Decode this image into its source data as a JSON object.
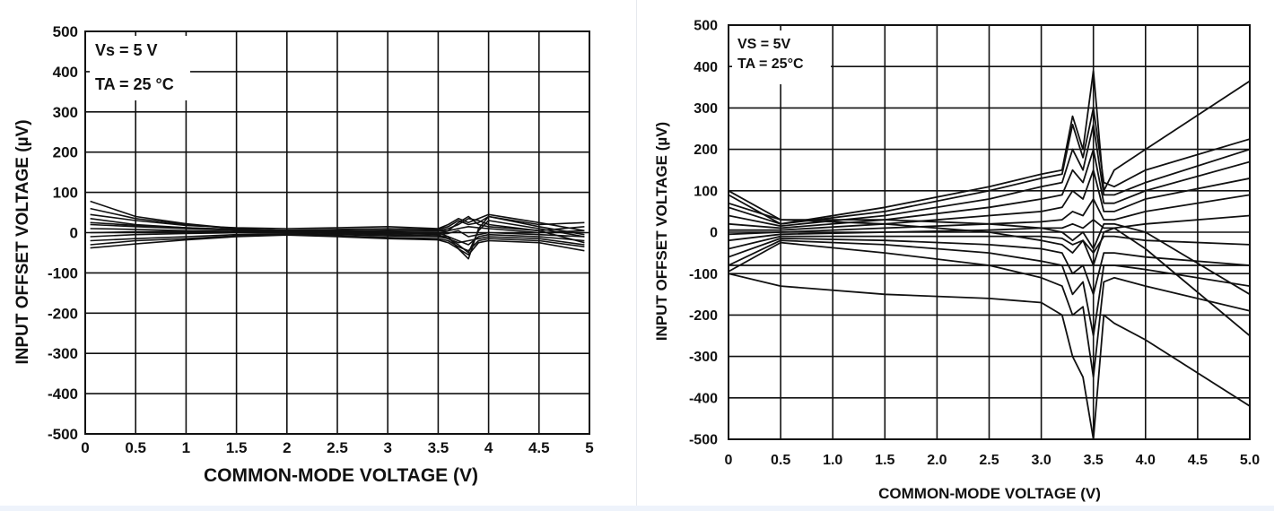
{
  "chart_data": [
    {
      "type": "line",
      "title": "",
      "xlabel": "COMMON-MODE VOLTAGE (V)",
      "ylabel": "INPUT OFFSET VOLTAGE (µV)",
      "xlim": [
        0,
        5
      ],
      "ylim": [
        -500,
        500
      ],
      "x_ticks": [
        "0",
        "0.5",
        "1",
        "1.5",
        "2",
        "2.5",
        "3",
        "3.5",
        "4",
        "4.5",
        "5"
      ],
      "y_ticks": [
        "500",
        "400",
        "300",
        "200",
        "100",
        "0",
        "-100",
        "-200",
        "-300",
        "-400",
        "-500"
      ],
      "grid": true,
      "legend": "none",
      "annotations": [
        "Vs = 5 V",
        "TA = 25 °C"
      ],
      "series": [
        {
          "x": [
            0.05,
            0.5,
            1.0,
            1.5,
            2.0,
            2.5,
            3.0,
            3.5,
            3.6,
            3.7,
            3.8,
            3.9,
            4.0,
            4.5,
            4.95
          ],
          "values": [
            78,
            40,
            22,
            10,
            5,
            3,
            2,
            0,
            -10,
            -40,
            -65,
            10,
            40,
            15,
            -5
          ]
        },
        {
          "x": [
            0.05,
            0.5,
            1.0,
            1.5,
            2.0,
            2.5,
            3.0,
            3.5,
            3.6,
            3.7,
            3.8,
            3.9,
            4.0,
            4.5,
            4.95
          ],
          "values": [
            60,
            35,
            20,
            10,
            5,
            3,
            0,
            -5,
            -15,
            -30,
            -50,
            5,
            30,
            10,
            -10
          ]
        },
        {
          "x": [
            0.05,
            0.5,
            1.0,
            1.5,
            2.0,
            2.5,
            3.0,
            3.5,
            3.6,
            3.7,
            3.8,
            3.9,
            4.0,
            4.5,
            4.95
          ],
          "values": [
            35,
            20,
            12,
            8,
            6,
            8,
            10,
            8,
            15,
            30,
            20,
            25,
            40,
            20,
            25
          ]
        },
        {
          "x": [
            0.05,
            0.5,
            1.0,
            1.5,
            2.0,
            2.5,
            3.0,
            3.5,
            3.6,
            3.7,
            3.8,
            3.9,
            4.0,
            4.5,
            4.95
          ],
          "values": [
            20,
            15,
            10,
            6,
            4,
            5,
            6,
            5,
            10,
            20,
            35,
            30,
            20,
            5,
            15
          ]
        },
        {
          "x": [
            0.05,
            0.5,
            1.0,
            1.5,
            2.0,
            2.5,
            3.0,
            3.5,
            3.6,
            3.7,
            3.8,
            3.9,
            4.0,
            4.5,
            4.95
          ],
          "values": [
            10,
            8,
            5,
            3,
            2,
            3,
            5,
            4,
            5,
            10,
            15,
            12,
            10,
            0,
            5
          ]
        },
        {
          "x": [
            0.05,
            0.5,
            1.0,
            1.5,
            2.0,
            2.5,
            3.0,
            3.5,
            3.6,
            3.7,
            3.8,
            3.9,
            4.0,
            4.5,
            4.95
          ],
          "values": [
            0,
            2,
            3,
            2,
            1,
            0,
            -2,
            -4,
            -2,
            5,
            -10,
            -5,
            0,
            -5,
            -10
          ]
        },
        {
          "x": [
            0.05,
            0.5,
            1.0,
            1.5,
            2.0,
            2.5,
            3.0,
            3.5,
            3.6,
            3.7,
            3.8,
            3.9,
            4.0,
            4.5,
            4.95
          ],
          "values": [
            -10,
            -5,
            -2,
            0,
            0,
            -2,
            -5,
            -8,
            -10,
            -20,
            -30,
            -10,
            -5,
            -10,
            -20
          ]
        },
        {
          "x": [
            0.05,
            0.5,
            1.0,
            1.5,
            2.0,
            2.5,
            3.0,
            3.5,
            3.6,
            3.7,
            3.8,
            3.9,
            4.0,
            4.5,
            4.95
          ],
          "values": [
            -20,
            -15,
            -10,
            -5,
            -3,
            -5,
            -8,
            -10,
            -15,
            -25,
            -20,
            -15,
            -10,
            -15,
            -30
          ]
        },
        {
          "x": [
            0.05,
            0.5,
            1.0,
            1.5,
            2.0,
            2.5,
            3.0,
            3.5,
            3.6,
            3.7,
            3.8,
            3.9,
            4.0,
            4.5,
            4.95
          ],
          "values": [
            -30,
            -20,
            -15,
            -8,
            -5,
            -8,
            -12,
            -15,
            -20,
            -35,
            -45,
            -20,
            -15,
            -20,
            -35
          ]
        },
        {
          "x": [
            0.05,
            0.5,
            1.0,
            1.5,
            2.0,
            2.5,
            3.0,
            3.5,
            3.6,
            3.7,
            3.8,
            3.9,
            4.0,
            4.5,
            4.95
          ],
          "values": [
            -38,
            -28,
            -18,
            -10,
            -6,
            -10,
            -15,
            -18,
            -25,
            -40,
            -55,
            -25,
            -20,
            -25,
            -45
          ]
        },
        {
          "x": [
            0.05,
            0.5,
            1.0,
            1.5,
            2.0,
            2.5,
            3.0,
            3.5,
            3.6,
            3.7,
            3.8,
            3.9,
            4.0,
            4.5,
            4.95
          ],
          "values": [
            45,
            30,
            18,
            12,
            10,
            12,
            15,
            10,
            20,
            35,
            25,
            35,
            45,
            25,
            5
          ]
        },
        {
          "x": [
            0.05,
            0.5,
            1.0,
            1.5,
            2.0,
            2.5,
            3.0,
            3.5,
            3.6,
            3.7,
            3.8,
            3.9,
            4.0,
            4.5,
            4.95
          ],
          "values": [
            25,
            18,
            12,
            8,
            5,
            4,
            2,
            -2,
            5,
            25,
            40,
            20,
            15,
            5,
            -25
          ]
        }
      ]
    },
    {
      "type": "line",
      "title": "",
      "xlabel": "COMMON-MODE VOLTAGE (V)",
      "ylabel": "INPUT OFFSET VOLTAGE (µV)",
      "xlim": [
        0,
        5
      ],
      "ylim": [
        -500,
        500
      ],
      "x_ticks": [
        "0",
        "0.5",
        "1.0",
        "1.5",
        "2.0",
        "2.5",
        "3.0",
        "3.5",
        "4.0",
        "4.5",
        "5.0"
      ],
      "y_ticks": [
        "500",
        "400",
        "300",
        "200",
        "100",
        "0",
        "-100",
        "-200",
        "-300",
        "-400",
        "-500"
      ],
      "grid": true,
      "legend": "none",
      "annotations": [
        "VS = 5V",
        "TA = 25°C"
      ],
      "series": [
        {
          "x": [
            0,
            0.5,
            1.5,
            2.5,
            3.0,
            3.2,
            3.3,
            3.4,
            3.5,
            3.6,
            3.7,
            4.0,
            5.0
          ],
          "values": [
            90,
            20,
            60,
            110,
            140,
            150,
            280,
            200,
            390,
            100,
            150,
            200,
            365
          ]
        },
        {
          "x": [
            0,
            0.5,
            1.5,
            2.5,
            3.0,
            3.2,
            3.3,
            3.4,
            3.5,
            3.6,
            3.7,
            4.0,
            5.0
          ],
          "values": [
            60,
            20,
            50,
            100,
            130,
            140,
            260,
            180,
            300,
            120,
            110,
            150,
            225
          ]
        },
        {
          "x": [
            0,
            0.5,
            1.5,
            2.5,
            3.0,
            3.2,
            3.3,
            3.4,
            3.5,
            3.6,
            3.7,
            4.0,
            5.0
          ],
          "values": [
            40,
            15,
            40,
            80,
            110,
            120,
            200,
            150,
            260,
            90,
            90,
            120,
            200
          ]
        },
        {
          "x": [
            0,
            0.5,
            1.5,
            2.5,
            3.0,
            3.2,
            3.3,
            3.4,
            3.5,
            3.6,
            3.7,
            4.0,
            5.0
          ],
          "values": [
            20,
            10,
            30,
            60,
            80,
            90,
            150,
            120,
            200,
            70,
            70,
            100,
            170
          ]
        },
        {
          "x": [
            0,
            0.5,
            1.5,
            2.5,
            3.0,
            3.2,
            3.3,
            3.4,
            3.5,
            3.6,
            3.7,
            4.0,
            5.0
          ],
          "values": [
            5,
            5,
            20,
            40,
            50,
            60,
            100,
            80,
            150,
            50,
            50,
            80,
            130
          ]
        },
        {
          "x": [
            0,
            0.5,
            1.5,
            2.5,
            3.0,
            3.2,
            3.3,
            3.4,
            3.5,
            3.6,
            3.7,
            4.0,
            5.0
          ],
          "values": [
            -5,
            0,
            10,
            20,
            25,
            30,
            50,
            40,
            80,
            30,
            30,
            50,
            90
          ]
        },
        {
          "x": [
            0,
            0.5,
            1.5,
            2.5,
            3.0,
            3.2,
            3.3,
            3.4,
            3.5,
            3.6,
            3.7,
            4.0,
            5.0
          ],
          "values": [
            -20,
            -5,
            0,
            5,
            10,
            10,
            20,
            10,
            30,
            10,
            10,
            20,
            40
          ]
        },
        {
          "x": [
            0,
            0.5,
            1.5,
            2.5,
            3.0,
            3.2,
            3.3,
            3.4,
            3.5,
            3.6,
            3.7,
            4.0,
            5.0
          ],
          "values": [
            -40,
            -10,
            -10,
            -10,
            -10,
            -15,
            -30,
            -20,
            -50,
            -10,
            -10,
            -20,
            -30
          ]
        },
        {
          "x": [
            0,
            0.5,
            1.5,
            2.5,
            3.0,
            3.2,
            3.3,
            3.4,
            3.5,
            3.6,
            3.7,
            4.0,
            5.0
          ],
          "values": [
            -60,
            -15,
            -20,
            -30,
            -40,
            -50,
            -100,
            -80,
            -150,
            -50,
            -50,
            -60,
            -80
          ]
        },
        {
          "x": [
            0,
            0.5,
            1.5,
            2.5,
            3.0,
            3.2,
            3.3,
            3.4,
            3.5,
            3.6,
            3.7,
            4.0,
            5.0
          ],
          "values": [
            -80,
            -20,
            -30,
            -50,
            -70,
            -80,
            -150,
            -120,
            -250,
            -80,
            -80,
            -90,
            -130
          ]
        },
        {
          "x": [
            0,
            0.5,
            1.5,
            2.5,
            3.0,
            3.2,
            3.3,
            3.4,
            3.5,
            3.6,
            3.7,
            4.0,
            5.0
          ],
          "values": [
            -95,
            -25,
            -50,
            -80,
            -110,
            -130,
            -200,
            -180,
            -350,
            -120,
            -110,
            -130,
            -190
          ]
        },
        {
          "x": [
            0,
            0.5,
            1.5,
            2.5,
            3.0,
            3.2,
            3.3,
            3.4,
            3.5,
            3.6,
            3.7,
            4.0,
            5.0
          ],
          "values": [
            -100,
            -130,
            -150,
            -160,
            -170,
            -200,
            -300,
            -350,
            -500,
            -200,
            -220,
            -260,
            -420
          ]
        },
        {
          "x": [
            0,
            0.5,
            1.5,
            2.5,
            3.0,
            3.2,
            3.3,
            3.4,
            3.5,
            3.6,
            3.7,
            4.0,
            5.0
          ],
          "values": [
            100,
            30,
            20,
            0,
            -20,
            -30,
            -50,
            -20,
            -80,
            0,
            10,
            -40,
            -250
          ]
        },
        {
          "x": [
            0,
            0.5,
            1.5,
            2.5,
            3.0,
            3.2,
            3.3,
            3.4,
            3.5,
            3.6,
            3.7,
            4.0,
            5.0
          ],
          "values": [
            70,
            30,
            30,
            20,
            10,
            0,
            -20,
            0,
            -40,
            20,
            20,
            0,
            -150
          ]
        },
        {
          "x": [
            0,
            0.5,
            1.5,
            2.5,
            3.0,
            3.2,
            3.3,
            3.4,
            3.5,
            3.6,
            3.7,
            4.0,
            5.0
          ],
          "values": [
            -80,
            -80,
            -80,
            -80,
            -80,
            -80,
            -80,
            -80,
            -80,
            -80,
            -80,
            -80,
            -80
          ]
        }
      ]
    }
  ]
}
